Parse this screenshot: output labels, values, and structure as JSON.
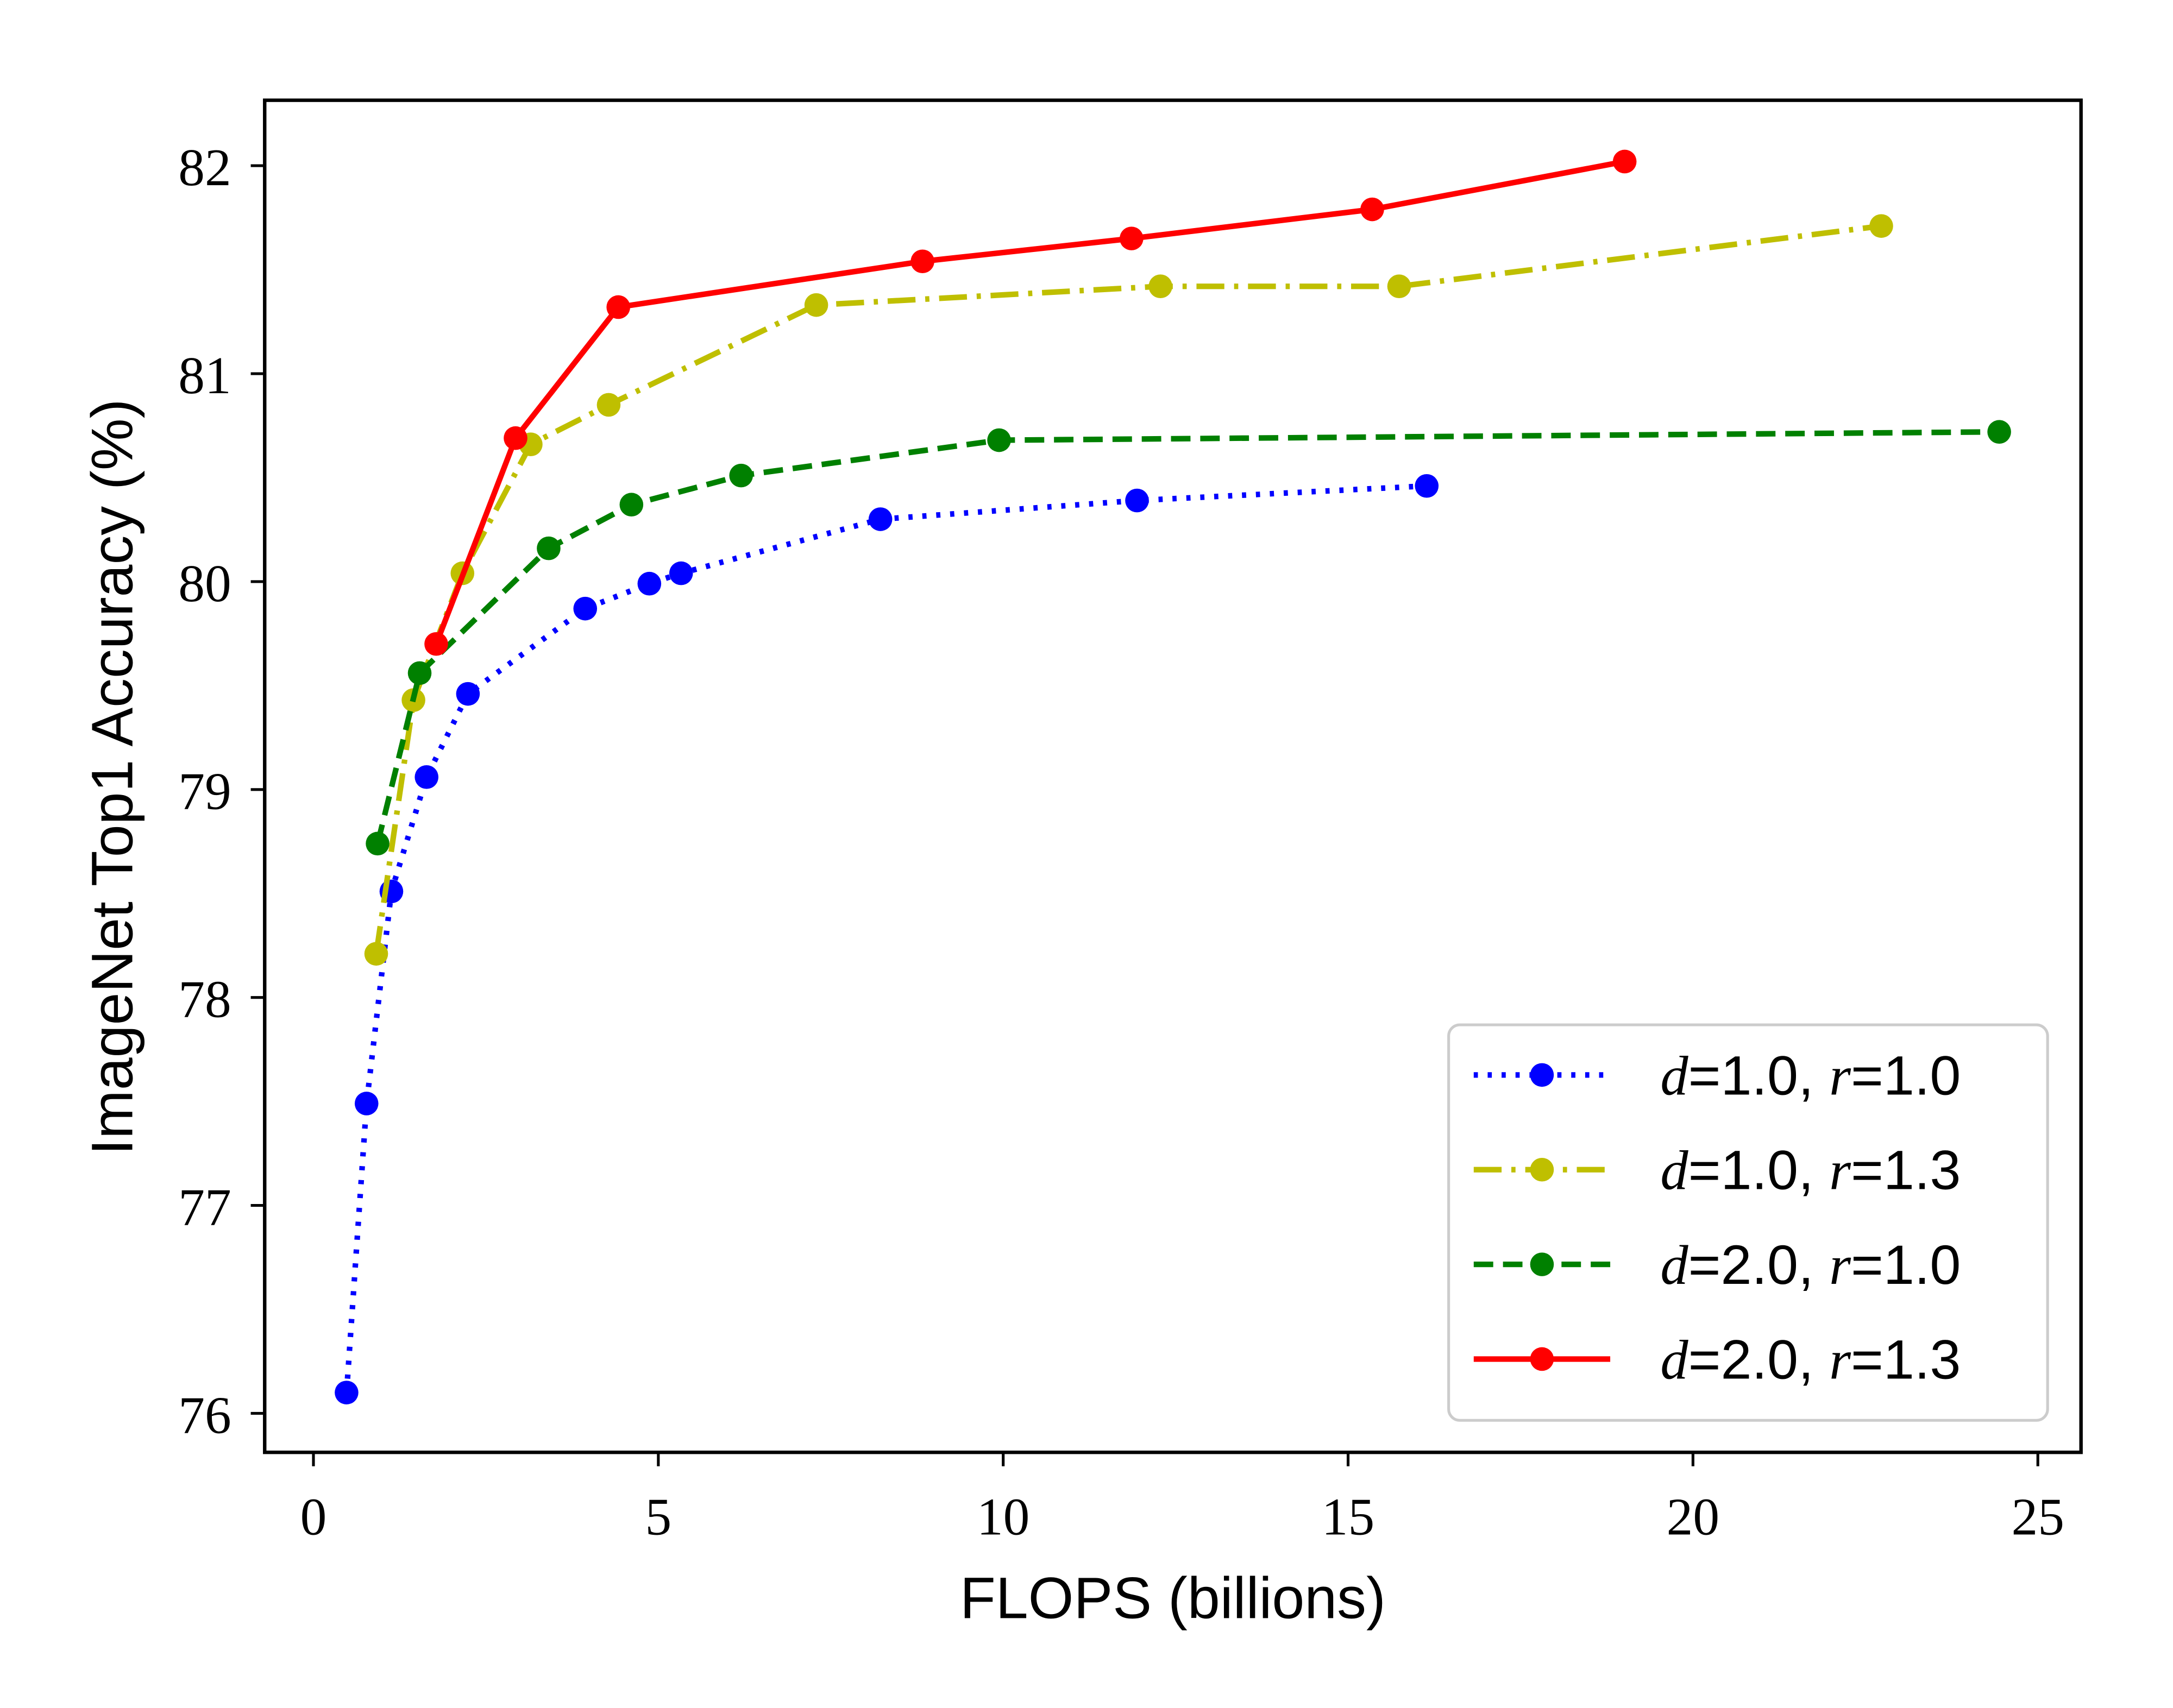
{
  "chart_data": {
    "type": "line",
    "title": "",
    "xlabel": "FLOPS (billions)",
    "ylabel": "ImageNet Top1 Accuracy (%)",
    "xlim": [
      -0.7,
      25.6
    ],
    "ylim": [
      75.8,
      82.3
    ],
    "xticks": [
      0,
      5,
      10,
      15,
      20,
      25
    ],
    "yticks": [
      76,
      77,
      78,
      79,
      80,
      81,
      82
    ],
    "grid": false,
    "legend_position": "lower-right",
    "series": [
      {
        "name": "d=1.0, r=1.0",
        "color": "#0000ff",
        "linestyle": "dotted",
        "x": [
          0.48,
          0.77,
          1.13,
          1.64,
          2.24,
          3.94,
          4.87,
          5.33,
          8.22,
          11.94,
          16.14
        ],
        "y": [
          76.1,
          77.49,
          78.51,
          79.06,
          79.46,
          79.87,
          79.99,
          80.04,
          80.3,
          80.39,
          80.46
        ]
      },
      {
        "name": "d=1.0, r=1.3",
        "color": "#bfbf00",
        "linestyle": "dashdot",
        "x": [
          0.91,
          1.45,
          2.16,
          3.15,
          4.28,
          7.29,
          12.28,
          15.74,
          22.73
        ],
        "y": [
          78.21,
          79.43,
          80.04,
          80.66,
          80.85,
          81.33,
          81.42,
          81.42,
          81.71
        ]
      },
      {
        "name": "d=2.0, r=1.0",
        "color": "#008000",
        "linestyle": "dashed",
        "x": [
          0.93,
          1.54,
          3.41,
          4.61,
          6.2,
          9.94,
          24.44
        ],
        "y": [
          78.74,
          79.56,
          80.16,
          80.37,
          80.51,
          80.68,
          80.72
        ]
      },
      {
        "name": "d=2.0, r=1.3",
        "color": "#ff0000",
        "linestyle": "solid",
        "x": [
          1.78,
          2.93,
          4.42,
          8.83,
          11.86,
          15.35,
          19.01
        ],
        "y": [
          79.7,
          80.69,
          81.32,
          81.54,
          81.65,
          81.79,
          82.02
        ]
      }
    ]
  }
}
